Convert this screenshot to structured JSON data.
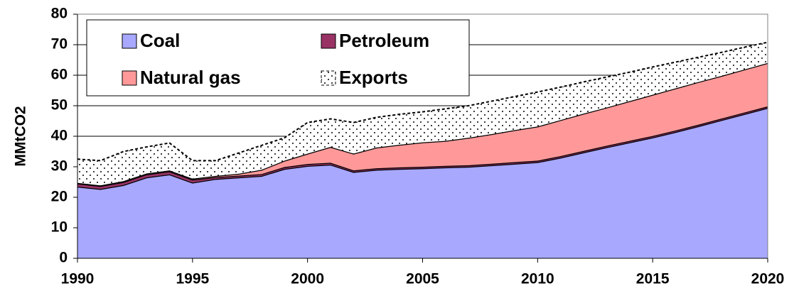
{
  "chart_data": {
    "type": "stacked_area",
    "y_label": "MMtCO2",
    "x": [
      1990,
      1991,
      1992,
      1993,
      1994,
      1995,
      1996,
      1997,
      1998,
      1999,
      2000,
      2001,
      2002,
      2003,
      2004,
      2005,
      2006,
      2007,
      2008,
      2009,
      2010,
      2011,
      2012,
      2013,
      2014,
      2015,
      2016,
      2017,
      2018,
      2019,
      2020
    ],
    "series": [
      {
        "name": "Coal",
        "color": "#a8a8ff",
        "values": [
          23.5,
          22.7,
          24,
          26.5,
          27.5,
          24.8,
          26,
          26.5,
          27,
          29.3,
          30.3,
          30.7,
          28.3,
          29,
          29.3,
          29.5,
          29.8,
          30,
          30.5,
          31,
          31.5,
          33,
          34.7,
          36.4,
          38,
          39.6,
          41.4,
          43.3,
          45.3,
          47.3,
          49.3
        ]
      },
      {
        "name": "Petroleum",
        "color": "#993366",
        "values": [
          1,
          1,
          1,
          1,
          1,
          1,
          0.6,
          0.6,
          0.6,
          0.6,
          0.6,
          0.6,
          0.5,
          0.5,
          0.5,
          0.5,
          0.5,
          0.5,
          0.5,
          0.5,
          0.5,
          0.5,
          0.5,
          0.5,
          0.5,
          0.5,
          0.5,
          0.5,
          0.5,
          0.5,
          0.5
        ]
      },
      {
        "name": "Natural gas",
        "color": "#ff9999",
        "values": [
          0.2,
          0.2,
          0.3,
          0.3,
          0.3,
          0.3,
          0.4,
          0.6,
          1.4,
          2.1,
          3.4,
          5.2,
          5.5,
          6.8,
          7.4,
          8,
          8.2,
          9,
          9.7,
          10.5,
          11.2,
          11.8,
          12.2,
          12.5,
          13,
          13.5,
          13.8,
          14,
          14,
          14.1,
          14.2
        ]
      },
      {
        "name": "Exports",
        "color": "#ffffff",
        "values": [
          7.8,
          8.1,
          9.7,
          8.7,
          9,
          5.9,
          5,
          6.8,
          8,
          7.5,
          10.2,
          9.2,
          10.2,
          9.9,
          10,
          10,
          10.5,
          10.5,
          10.8,
          11,
          11.3,
          10.8,
          10.4,
          10,
          9.5,
          9.1,
          8.6,
          8.1,
          7.7,
          7.3,
          6.8
        ]
      }
    ],
    "xlim": [
      1990,
      2020
    ],
    "xticks": [
      1990,
      1995,
      2000,
      2005,
      2010,
      2015,
      2020
    ],
    "ylim": [
      0,
      80
    ],
    "yticks": [
      0,
      10,
      20,
      30,
      40,
      50,
      60,
      70,
      80
    ],
    "grid": true,
    "legend": "top-left"
  }
}
